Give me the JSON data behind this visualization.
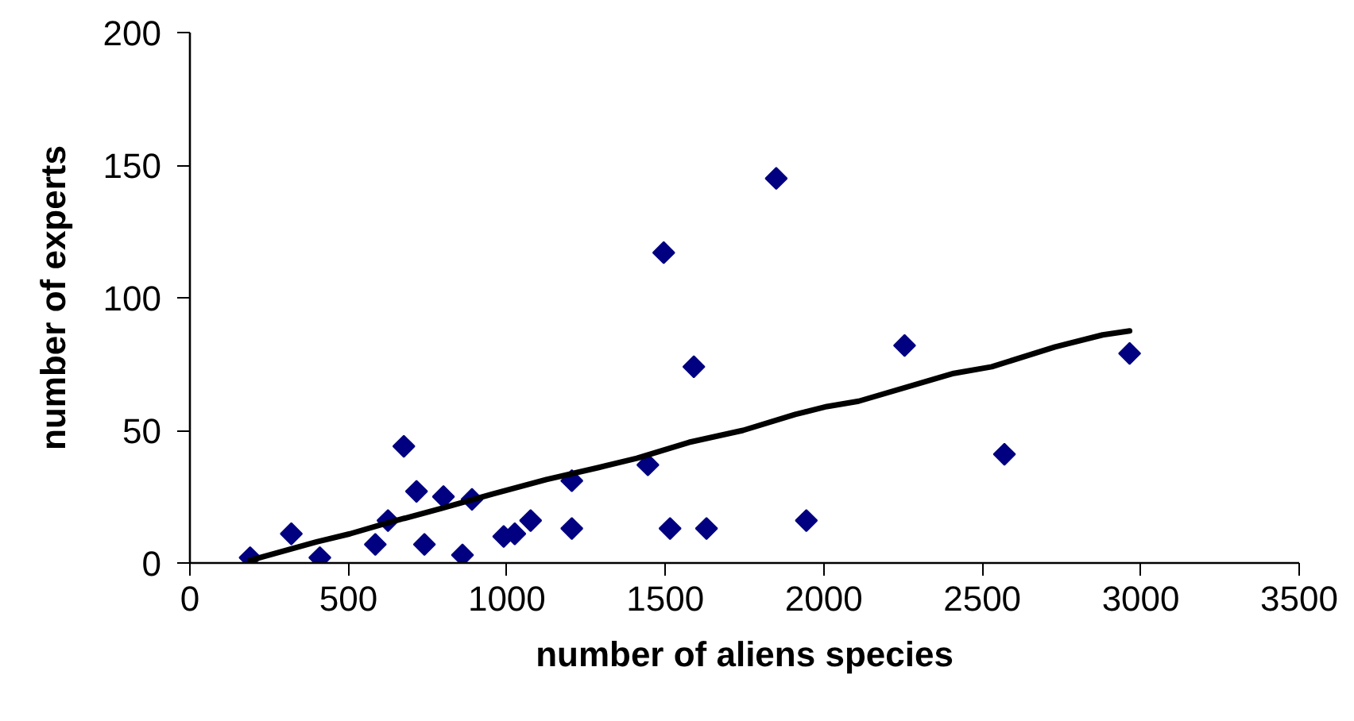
{
  "chart_data": {
    "type": "scatter",
    "xlabel": "number of aliens species",
    "ylabel": "number of experts",
    "xlim": [
      0,
      3500
    ],
    "xticks": [
      0,
      500,
      1000,
      1500,
      2000,
      2500,
      3000,
      3500
    ],
    "ylim": [
      0,
      200
    ],
    "yticks": [
      0,
      50,
      100,
      150,
      200
    ],
    "grid": false,
    "marker": "diamond",
    "series": [
      {
        "color": "#000080",
        "x": [
          190,
          320,
          410,
          585,
          625,
          675,
          715,
          740,
          800,
          860,
          890,
          990,
          1025,
          1075,
          1205,
          1205,
          1445,
          1515,
          1630,
          1945,
          2570,
          1850,
          1495,
          1590,
          2255,
          2965
        ],
        "values": [
          2,
          11,
          2,
          7,
          16,
          44,
          27,
          7,
          25,
          3,
          24,
          10,
          11,
          16,
          31,
          13,
          37,
          13,
          13,
          16,
          41,
          145,
          117,
          74,
          82,
          79
        ]
      },
      {
        "type": "line",
        "marker": "none",
        "line_style": "solid",
        "color": "#000000",
        "x": [
          190,
          400,
          505,
          620,
          790,
          955,
          1125,
          1290,
          1410,
          1575,
          1745,
          1910,
          2010,
          2110,
          2410,
          2530,
          2730,
          2880,
          2965
        ],
        "values": [
          1,
          8,
          11,
          15,
          20.5,
          26,
          31.5,
          36,
          39.5,
          45.5,
          50,
          56,
          59,
          61,
          71.5,
          74,
          81.5,
          86,
          87.5
        ]
      }
    ]
  }
}
